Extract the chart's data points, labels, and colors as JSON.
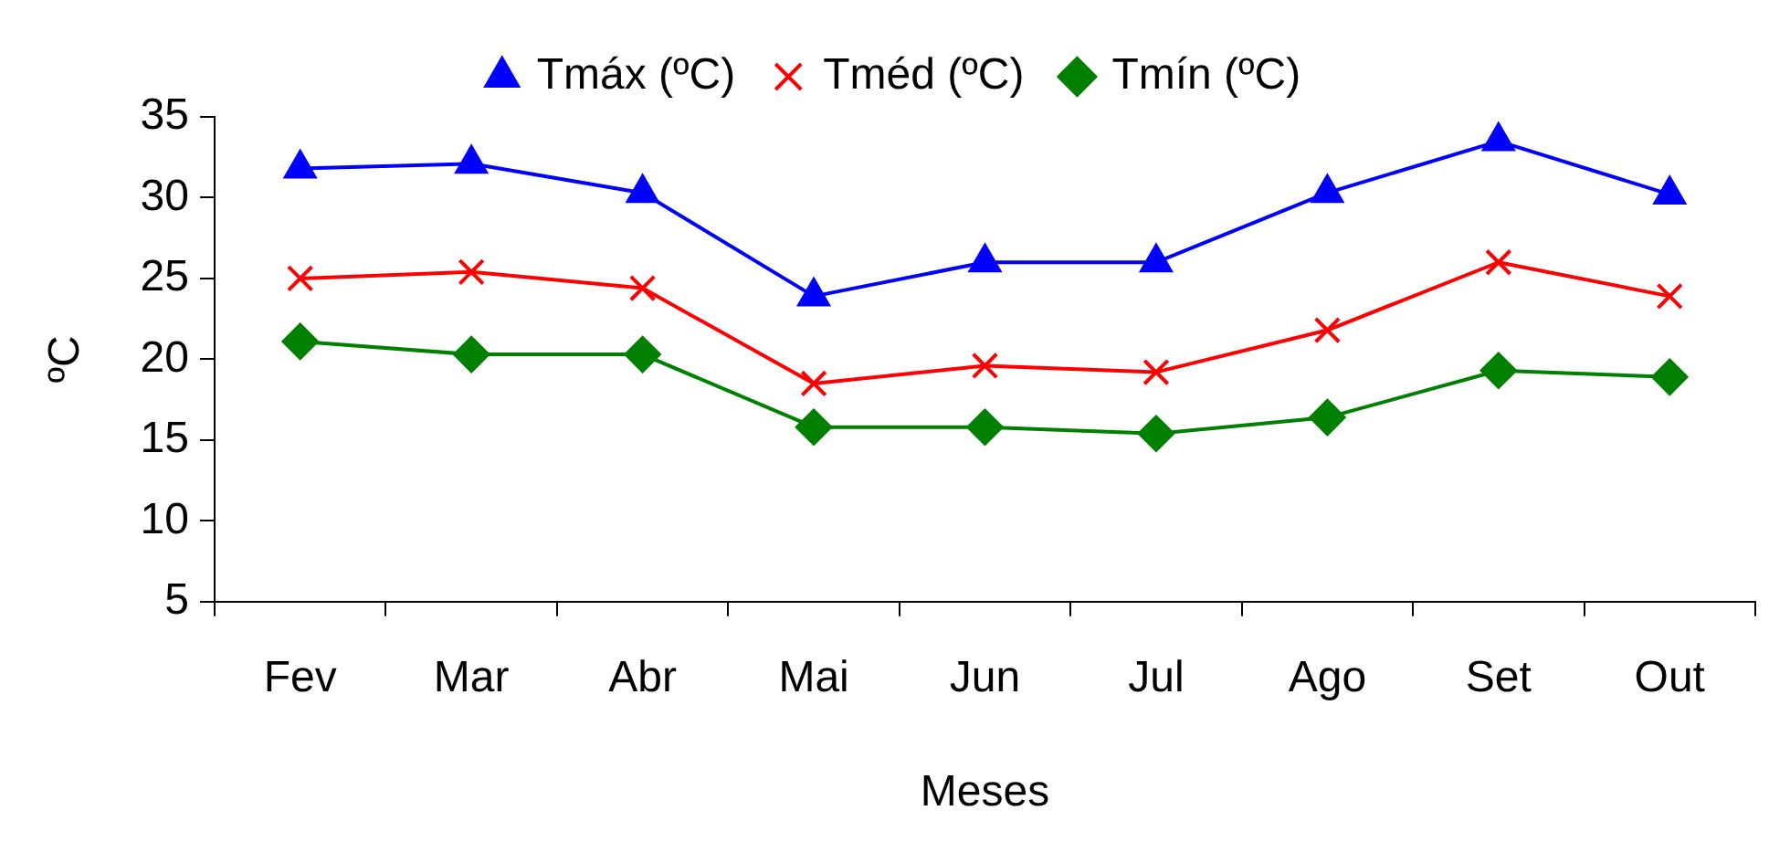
{
  "chart_data": {
    "type": "line",
    "xlabel": "Meses",
    "ylabel": "ºC",
    "categories": [
      "Fev",
      "Mar",
      "Abr",
      "Mai",
      "Jun",
      "Jul",
      "Ago",
      "Set",
      "Out"
    ],
    "series": [
      {
        "name": "Tmáx (ºC)",
        "color": "#0000ff",
        "marker": "triangle",
        "values": [
          31.8,
          32.1,
          30.3,
          23.9,
          26.0,
          26.0,
          30.3,
          33.5,
          30.2
        ]
      },
      {
        "name": "Tméd (ºC)",
        "color": "#ff0000",
        "marker": "cross",
        "values": [
          25.0,
          25.4,
          24.4,
          18.5,
          19.6,
          19.2,
          21.8,
          26.0,
          23.9
        ]
      },
      {
        "name": "Tmín (ºC)",
        "color": "#008000",
        "marker": "diamond",
        "values": [
          21.1,
          20.3,
          20.3,
          15.8,
          15.8,
          15.4,
          16.4,
          19.3,
          18.9
        ]
      }
    ],
    "ylim": [
      5,
      35
    ],
    "yticks": [
      5,
      10,
      15,
      20,
      25,
      30,
      35
    ],
    "grid": false,
    "legend": "top",
    "line_style": "solid"
  }
}
